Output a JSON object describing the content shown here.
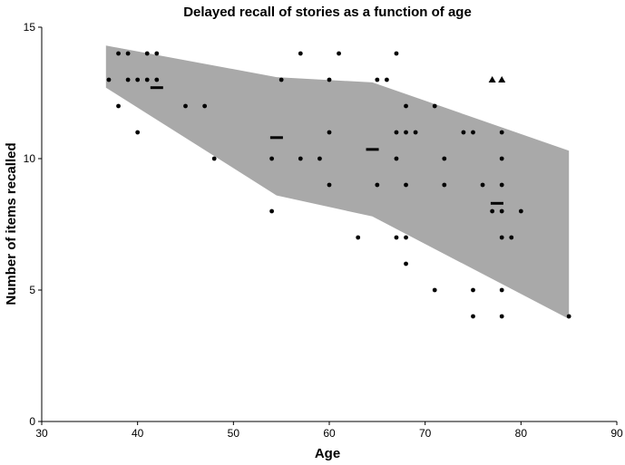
{
  "chart_data": {
    "type": "scatter",
    "title": "Delayed recall of stories as a function of age",
    "xlabel": "Age",
    "ylabel": "Number of items recalled",
    "xlim": [
      30,
      90
    ],
    "ylim": [
      0,
      15
    ],
    "xticks": [
      "30",
      "40",
      "50",
      "60",
      "70",
      "80",
      "90"
    ],
    "yticks": [
      "0",
      "5",
      "10",
      "15"
    ],
    "grid": false,
    "legend": "none",
    "band": {
      "color": "#a9a9a9",
      "upper": [
        [
          36.7,
          14.3
        ],
        [
          54.5,
          13.1
        ],
        [
          64.5,
          12.9
        ],
        [
          85,
          10.3
        ]
      ],
      "lower": [
        [
          36.7,
          12.7
        ],
        [
          54.5,
          8.6
        ],
        [
          64.5,
          7.8
        ],
        [
          85,
          3.9
        ]
      ]
    },
    "means": [
      {
        "x": 42,
        "y": 12.7
      },
      {
        "x": 54.5,
        "y": 10.8
      },
      {
        "x": 64.5,
        "y": 10.35
      },
      {
        "x": 77.5,
        "y": 8.3
      }
    ],
    "points": [
      {
        "x": 37,
        "y": 13
      },
      {
        "x": 38,
        "y": 14
      },
      {
        "x": 38,
        "y": 12
      },
      {
        "x": 39,
        "y": 14
      },
      {
        "x": 39,
        "y": 13
      },
      {
        "x": 40,
        "y": 13
      },
      {
        "x": 40,
        "y": 11
      },
      {
        "x": 41,
        "y": 14
      },
      {
        "x": 41,
        "y": 13
      },
      {
        "x": 42,
        "y": 14
      },
      {
        "x": 42,
        "y": 13
      },
      {
        "x": 45,
        "y": 12
      },
      {
        "x": 47,
        "y": 12
      },
      {
        "x": 48,
        "y": 10
      },
      {
        "x": 54,
        "y": 10
      },
      {
        "x": 54,
        "y": 8
      },
      {
        "x": 55,
        "y": 13
      },
      {
        "x": 57,
        "y": 14
      },
      {
        "x": 57,
        "y": 10
      },
      {
        "x": 59,
        "y": 10
      },
      {
        "x": 60,
        "y": 13
      },
      {
        "x": 60,
        "y": 11
      },
      {
        "x": 60,
        "y": 9
      },
      {
        "x": 61,
        "y": 14
      },
      {
        "x": 63,
        "y": 7
      },
      {
        "x": 65,
        "y": 13
      },
      {
        "x": 65,
        "y": 9
      },
      {
        "x": 66,
        "y": 13
      },
      {
        "x": 67,
        "y": 14
      },
      {
        "x": 67,
        "y": 11
      },
      {
        "x": 67,
        "y": 10
      },
      {
        "x": 67,
        "y": 7
      },
      {
        "x": 68,
        "y": 12
      },
      {
        "x": 68,
        "y": 11
      },
      {
        "x": 68,
        "y": 9
      },
      {
        "x": 68,
        "y": 7
      },
      {
        "x": 68,
        "y": 6
      },
      {
        "x": 69,
        "y": 11
      },
      {
        "x": 71,
        "y": 12
      },
      {
        "x": 71,
        "y": 5
      },
      {
        "x": 72,
        "y": 10
      },
      {
        "x": 72,
        "y": 9
      },
      {
        "x": 74,
        "y": 11
      },
      {
        "x": 75,
        "y": 11
      },
      {
        "x": 75,
        "y": 5
      },
      {
        "x": 75,
        "y": 4
      },
      {
        "x": 76,
        "y": 9
      },
      {
        "x": 77,
        "y": 8
      },
      {
        "x": 78,
        "y": 11
      },
      {
        "x": 78,
        "y": 10
      },
      {
        "x": 78,
        "y": 9
      },
      {
        "x": 78,
        "y": 8
      },
      {
        "x": 78,
        "y": 7
      },
      {
        "x": 78,
        "y": 5
      },
      {
        "x": 78,
        "y": 4
      },
      {
        "x": 79,
        "y": 7
      },
      {
        "x": 80,
        "y": 8
      },
      {
        "x": 85,
        "y": 4
      }
    ],
    "triangles": [
      {
        "x": 77,
        "y": 13
      },
      {
        "x": 78,
        "y": 13
      }
    ]
  }
}
